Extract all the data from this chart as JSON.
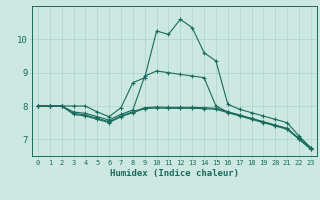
{
  "xlabel": "Humidex (Indice chaleur)",
  "bg_color": "#cce8e0",
  "line_color": "#1a6b5e",
  "grid_color": "#aad4cc",
  "xlim": [
    -0.5,
    23.5
  ],
  "ylim": [
    6.5,
    11.0
  ],
  "yticks": [
    7,
    8,
    9,
    10
  ],
  "xticks": [
    0,
    1,
    2,
    3,
    4,
    5,
    6,
    7,
    8,
    9,
    10,
    11,
    12,
    13,
    14,
    15,
    16,
    17,
    18,
    19,
    20,
    21,
    22,
    23
  ],
  "lines": [
    {
      "x": [
        0,
        1,
        2,
        3,
        4,
        5,
        6,
        7,
        8,
        9,
        10,
        11,
        12,
        13,
        14,
        15,
        16,
        17,
        18,
        19,
        20,
        21,
        22,
        23
      ],
      "y": [
        8.0,
        8.0,
        8.0,
        8.0,
        8.0,
        7.82,
        7.68,
        7.95,
        8.7,
        8.85,
        10.25,
        10.15,
        10.6,
        10.35,
        9.6,
        9.35,
        8.05,
        7.9,
        7.8,
        7.7,
        7.6,
        7.5,
        7.1,
        6.75
      ]
    },
    {
      "x": [
        0,
        1,
        2,
        3,
        4,
        5,
        6,
        7,
        8,
        9,
        10,
        11,
        12,
        13,
        14,
        15,
        16,
        17,
        18,
        19,
        20,
        21,
        22,
        23
      ],
      "y": [
        8.0,
        8.0,
        8.0,
        7.82,
        7.78,
        7.68,
        7.58,
        7.75,
        7.88,
        8.9,
        9.05,
        9.0,
        8.95,
        8.9,
        8.85,
        8.0,
        7.82,
        7.72,
        7.62,
        7.52,
        7.42,
        7.32,
        7.02,
        6.72
      ]
    },
    {
      "x": [
        0,
        1,
        2,
        3,
        4,
        5,
        6,
        7,
        8,
        9,
        10,
        11,
        12,
        13,
        14,
        15,
        16,
        17,
        18,
        19,
        20,
        21,
        22,
        23
      ],
      "y": [
        8.0,
        8.0,
        8.0,
        7.78,
        7.73,
        7.63,
        7.53,
        7.7,
        7.83,
        7.95,
        7.97,
        7.96,
        7.96,
        7.96,
        7.95,
        7.93,
        7.83,
        7.73,
        7.63,
        7.53,
        7.43,
        7.33,
        7.03,
        6.73
      ]
    },
    {
      "x": [
        0,
        1,
        2,
        3,
        4,
        5,
        6,
        7,
        8,
        9,
        10,
        11,
        12,
        13,
        14,
        15,
        16,
        17,
        18,
        19,
        20,
        21,
        22,
        23
      ],
      "y": [
        8.0,
        8.0,
        8.0,
        7.75,
        7.7,
        7.6,
        7.5,
        7.68,
        7.8,
        7.92,
        7.94,
        7.93,
        7.93,
        7.93,
        7.92,
        7.9,
        7.8,
        7.7,
        7.6,
        7.5,
        7.4,
        7.3,
        7.0,
        6.7
      ]
    }
  ]
}
